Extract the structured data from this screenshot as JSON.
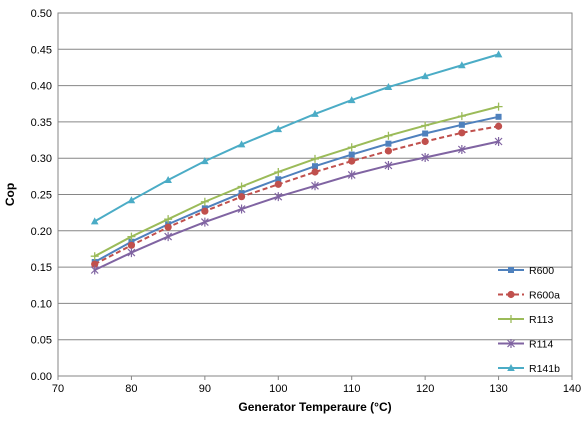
{
  "chart_data": {
    "type": "line",
    "xlabel": "Generator Temperaure (°C)",
    "ylabel": "Cop",
    "xlim": [
      70,
      140
    ],
    "ylim": [
      0,
      0.5
    ],
    "xticks": [
      "70",
      "80",
      "90",
      "100",
      "110",
      "120",
      "130",
      "140"
    ],
    "yticks": [
      "0.00",
      "0.05",
      "0.10",
      "0.15",
      "0.20",
      "0.25",
      "0.30",
      "0.35",
      "0.40",
      "0.45",
      "0.50"
    ],
    "grid": "horizontal",
    "legend_position": "bottom-right",
    "x": [
      75,
      80,
      85,
      90,
      95,
      100,
      105,
      110,
      115,
      120,
      125,
      130
    ],
    "series": [
      {
        "name": "R600",
        "color": "#4f81bd",
        "marker": "square",
        "dash": "solid",
        "values": [
          0.157,
          0.185,
          0.209,
          0.231,
          0.252,
          0.271,
          0.289,
          0.305,
          0.32,
          0.334,
          0.346,
          0.357
        ]
      },
      {
        "name": "R600a",
        "color": "#c0504d",
        "marker": "circle",
        "dash": "dashed",
        "values": [
          0.154,
          0.18,
          0.205,
          0.227,
          0.247,
          0.264,
          0.281,
          0.296,
          0.31,
          0.323,
          0.335,
          0.344
        ]
      },
      {
        "name": "R113",
        "color": "#9bbb59",
        "marker": "plus",
        "dash": "solid",
        "values": [
          0.165,
          0.192,
          0.216,
          0.24,
          0.261,
          0.281,
          0.299,
          0.315,
          0.331,
          0.345,
          0.358,
          0.371
        ]
      },
      {
        "name": "R114",
        "color": "#8064a2",
        "marker": "star",
        "dash": "solid",
        "values": [
          0.146,
          0.17,
          0.192,
          0.212,
          0.23,
          0.247,
          0.262,
          0.277,
          0.29,
          0.301,
          0.312,
          0.323
        ]
      },
      {
        "name": "R141b",
        "color": "#4bacc6",
        "marker": "triangle",
        "dash": "solid",
        "values": [
          0.213,
          0.242,
          0.27,
          0.296,
          0.319,
          0.34,
          0.361,
          0.38,
          0.398,
          0.413,
          0.428,
          0.443
        ]
      }
    ]
  }
}
